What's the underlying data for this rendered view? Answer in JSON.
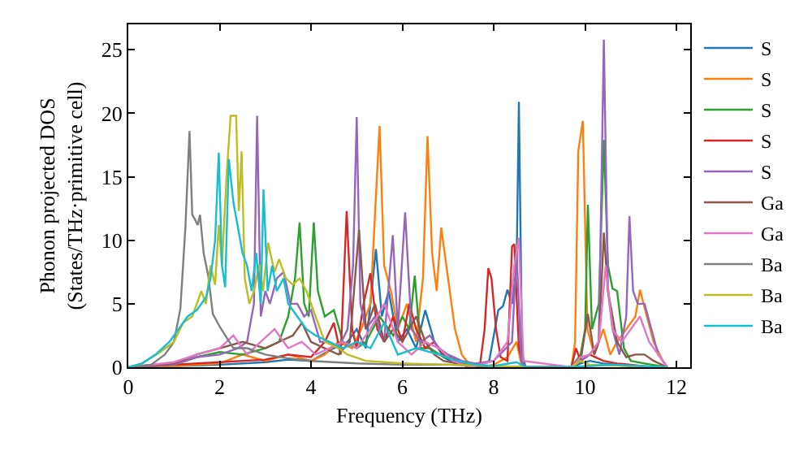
{
  "chart_data": {
    "type": "line",
    "xlabel": "Frequency (THz)",
    "ylabel": "Phonon projected DOS\n(States/THz·primitive cell)",
    "xlim": [
      0,
      12.3
    ],
    "xticks": [
      0,
      2,
      4,
      6,
      8,
      10,
      12
    ],
    "ylim": [
      0,
      27
    ],
    "yticks": [
      0,
      5,
      10,
      15,
      20,
      25
    ],
    "grid": false,
    "legend": "top right",
    "marker": "none",
    "line_style": "solid",
    "series": [
      {
        "name": "S",
        "color": "#1f77b4",
        "x": [
          0,
          1,
          2,
          3,
          3.5,
          4,
          4.5,
          4.8,
          5.0,
          5.2,
          5.42,
          5.55,
          5.7,
          5.9,
          6.1,
          6.3,
          6.5,
          6.7,
          6.9,
          7.1,
          7.3,
          7.5,
          7.7,
          7.9,
          8.0,
          8.1,
          8.2,
          8.3,
          8.4,
          8.5,
          8.55,
          8.62,
          8.7,
          9.7,
          9.9,
          10.1,
          10.4,
          10.7,
          11,
          11.5,
          11.8
        ],
        "values": [
          0,
          0.1,
          0.2,
          0.4,
          0.6,
          0.5,
          1.5,
          2,
          3,
          1.5,
          9.3,
          4,
          6,
          2,
          3,
          1.5,
          4.5,
          2,
          0.8,
          0.4,
          0.2,
          0,
          0.1,
          0.5,
          2.5,
          4.5,
          4.8,
          6.1,
          5,
          8,
          20.9,
          1,
          0,
          0,
          0.3,
          0.5,
          0.3,
          0.2,
          0.1,
          0,
          0
        ]
      },
      {
        "name": "S",
        "color": "#ff7f0e",
        "x": [
          0,
          1,
          2,
          2.5,
          3,
          3.5,
          4,
          4.3,
          4.6,
          4.9,
          5.1,
          5.3,
          5.5,
          5.6,
          5.75,
          5.9,
          6.1,
          6.3,
          6.45,
          6.55,
          6.65,
          6.75,
          6.85,
          7.0,
          7.15,
          7.3,
          7.45,
          7.7,
          8.0,
          8.3,
          8.5,
          8.6,
          8.7,
          9.7,
          9.78,
          9.85,
          9.95,
          10.05,
          10.2,
          10.4,
          10.55,
          10.7,
          10.9,
          11.1,
          11.2,
          11.35,
          11.5,
          11.7,
          11.8
        ],
        "values": [
          0,
          0.1,
          0.3,
          1,
          0.5,
          1,
          0.5,
          1,
          2,
          1.5,
          3,
          5,
          19,
          8,
          6,
          3,
          5,
          2,
          7,
          18.2,
          9,
          6,
          11,
          7,
          3,
          1,
          0.3,
          0,
          0.2,
          0.8,
          2,
          0.3,
          0,
          0,
          2,
          17,
          19.4,
          3,
          1,
          3,
          1,
          2,
          3,
          4,
          6.1,
          4,
          2,
          0.5,
          0
        ]
      },
      {
        "name": "S",
        "color": "#2ca02c",
        "x": [
          0,
          1,
          1.5,
          2,
          2.5,
          3,
          3.3,
          3.5,
          3.65,
          3.75,
          3.85,
          3.95,
          4.06,
          4.15,
          4.3,
          4.5,
          4.7,
          5.0,
          5.2,
          5.5,
          5.8,
          6.0,
          6.15,
          6.27,
          6.4,
          6.6,
          6.9,
          7.2,
          7.5,
          8,
          8.7,
          9.7,
          9.9,
          10.0,
          10.06,
          10.15,
          10.3,
          10.41,
          10.5,
          10.6,
          10.7,
          10.85,
          11,
          11.3,
          11.8
        ],
        "values": [
          0,
          0.2,
          0.8,
          1.2,
          1.0,
          1.5,
          2,
          4,
          7,
          11.4,
          5,
          4,
          11.4,
          6,
          4,
          4.5,
          2,
          1.5,
          2,
          4,
          2.5,
          4,
          3,
          7.2,
          1.5,
          1.5,
          0.8,
          0.5,
          0.1,
          0,
          0,
          0,
          1,
          3,
          12.8,
          3,
          5,
          17.9,
          8,
          6.2,
          6,
          1.5,
          0.5,
          0.3,
          0
        ]
      },
      {
        "name": "S",
        "color": "#d62728",
        "x": [
          0,
          1,
          2,
          3,
          3.5,
          4,
          4.3,
          4.5,
          4.65,
          4.78,
          4.9,
          5.0,
          5.15,
          5.3,
          5.45,
          5.6,
          5.8,
          6.0,
          6.15,
          6.3,
          6.5,
          6.7,
          6.9,
          7.1,
          7.3,
          7.5,
          7.7,
          7.8,
          7.88,
          7.95,
          8.05,
          8.15,
          8.3,
          8.4,
          8.45,
          8.55,
          8.65,
          9.7,
          9.8,
          9.9,
          10.1,
          10.4,
          10.7,
          11,
          11.5,
          11.8
        ],
        "values": [
          0,
          0.2,
          0.4,
          0.6,
          1,
          0.8,
          2,
          3.5,
          1,
          12.3,
          3,
          1.5,
          5,
          7.4,
          3,
          2,
          4,
          2,
          5,
          3,
          1.5,
          2,
          1,
          0.8,
          0.3,
          0,
          0.2,
          3,
          7.8,
          7,
          3,
          0.8,
          0.5,
          9.5,
          9.7,
          1.5,
          0,
          0,
          1.5,
          0.5,
          1,
          0.5,
          0.3,
          0.2,
          0,
          0
        ]
      },
      {
        "name": "S",
        "color": "#9467bd",
        "x": [
          0,
          1,
          1.5,
          2,
          2.4,
          2.6,
          2.75,
          2.82,
          2.9,
          3.0,
          3.1,
          3.25,
          3.4,
          3.55,
          3.7,
          3.85,
          4.0,
          4.2,
          4.4,
          4.6,
          4.8,
          4.92,
          5.0,
          5.08,
          5.2,
          5.4,
          5.6,
          5.79,
          5.9,
          6.06,
          6.2,
          6.4,
          6.6,
          6.8,
          7.0,
          7.3,
          7.6,
          8.0,
          8.4,
          8.5,
          8.6,
          8.7,
          9.7,
          9.9,
          10.1,
          10.3,
          10.41,
          10.5,
          10.6,
          10.75,
          10.9,
          10.97,
          11.05,
          11.15,
          11.3,
          11.45,
          11.6,
          11.8
        ],
        "values": [
          0,
          0.2,
          0.8,
          1,
          1.5,
          2,
          5,
          19.8,
          4,
          6,
          5,
          7,
          7.5,
          5,
          5,
          4,
          4.5,
          2,
          2,
          1.5,
          3,
          8,
          19.7,
          5,
          3,
          4,
          2,
          10.4,
          3,
          12.2,
          3,
          2,
          2.5,
          1.5,
          1,
          0.5,
          0.3,
          0.5,
          2,
          9,
          0.5,
          0,
          0,
          0.5,
          1,
          2,
          25.8,
          6,
          3,
          1,
          4,
          11.9,
          6,
          5,
          5,
          3,
          1,
          0
        ]
      },
      {
        "name": "Ga",
        "color": "#8c564b",
        "x": [
          0,
          1,
          1.5,
          2,
          2.5,
          3,
          3.3,
          3.6,
          3.8,
          4.0,
          4.3,
          4.6,
          4.85,
          5.05,
          5.2,
          5.4,
          5.6,
          5.8,
          6.0,
          6.3,
          6.5,
          6.7,
          6.9,
          7.2,
          7.5,
          8,
          8.7,
          9.7,
          9.9,
          10.06,
          10.2,
          10.3,
          10.41,
          10.5,
          10.6,
          10.7,
          10.9,
          11.1,
          11.3,
          11.5,
          11.8
        ],
        "values": [
          0,
          0.3,
          1,
          1.5,
          2,
          1.5,
          2,
          2.5,
          3.5,
          2,
          1.5,
          1,
          2,
          10.8,
          3,
          5,
          2,
          3,
          2,
          4,
          2,
          1,
          0.5,
          0.3,
          0,
          0,
          0,
          0,
          0.5,
          4.2,
          1,
          2,
          10.6,
          6,
          4,
          2,
          0.8,
          1,
          1,
          0.5,
          0
        ]
      },
      {
        "name": "Ga",
        "color": "#e377c2",
        "x": [
          0,
          1,
          1.5,
          2,
          2.3,
          2.6,
          2.9,
          3.2,
          3.5,
          3.8,
          4.1,
          4.4,
          4.7,
          5.0,
          5.3,
          5.6,
          5.9,
          6.2,
          6.5,
          6.8,
          7.1,
          7.5,
          8.0,
          8.3,
          8.45,
          8.55,
          8.65,
          9.7,
          9.9,
          10.1,
          10.3,
          10.45,
          10.6,
          10.8,
          11.0,
          11.2,
          11.4,
          11.6,
          11.8
        ],
        "values": [
          0,
          0.4,
          1,
          1.5,
          2.5,
          1,
          2,
          3,
          1.5,
          2,
          1,
          1.5,
          2,
          1.5,
          3,
          5,
          2,
          1,
          2,
          1.5,
          0.5,
          0,
          0.5,
          2,
          8,
          10.2,
          0.5,
          0,
          0.8,
          1,
          2,
          8,
          3,
          2,
          3,
          4,
          2,
          1,
          0
        ]
      },
      {
        "name": "Ba",
        "color": "#7f7f7f",
        "x": [
          0,
          0.5,
          0.8,
          1.0,
          1.14,
          1.25,
          1.34,
          1.4,
          1.45,
          1.52,
          1.57,
          1.65,
          1.75,
          1.85,
          2.0,
          2.3,
          2.6,
          3.0,
          3.5,
          4,
          5,
          6,
          7,
          8,
          8.7,
          9.7,
          10.4,
          11,
          11.8
        ],
        "values": [
          0,
          0.2,
          1,
          2,
          4.6,
          11,
          18.6,
          12,
          11.7,
          11.2,
          12,
          9,
          7.2,
          4.2,
          3.2,
          1.5,
          1.5,
          1,
          0.7,
          0.5,
          0.3,
          0.2,
          0.2,
          0.1,
          0,
          0,
          0.2,
          0.1,
          0
        ]
      },
      {
        "name": "Ba",
        "color": "#bcbd22",
        "x": [
          0,
          0.3,
          0.7,
          1.0,
          1.2,
          1.4,
          1.5,
          1.6,
          1.7,
          1.8,
          1.9,
          1.98,
          2.05,
          2.15,
          2.24,
          2.36,
          2.42,
          2.48,
          2.55,
          2.65,
          2.75,
          2.87,
          2.95,
          3.06,
          3.2,
          3.3,
          3.45,
          3.6,
          3.75,
          3.9,
          4.1,
          4.3,
          4.6,
          4.8,
          5.2,
          6,
          7,
          8,
          8.7,
          9.7,
          9.9,
          10.1,
          11,
          11.8
        ],
        "values": [
          0,
          0.3,
          1.2,
          2,
          3.5,
          4,
          5,
          6,
          5,
          8,
          6.5,
          11.2,
          8,
          15,
          19.8,
          19.8,
          12.3,
          17,
          7,
          5,
          6,
          8.1,
          6,
          9.8,
          7.5,
          8.5,
          7,
          6.5,
          7,
          6,
          4,
          2,
          1.5,
          1,
          0.5,
          0.3,
          0.2,
          0.1,
          0,
          0,
          0.5,
          0.2,
          0.1,
          0
        ]
      },
      {
        "name": "Ba",
        "color": "#17becf",
        "x": [
          0,
          0.3,
          0.6,
          0.9,
          1.1,
          1.3,
          1.5,
          1.7,
          1.8,
          1.9,
          1.98,
          2.05,
          2.12,
          2.2,
          2.3,
          2.4,
          2.5,
          2.6,
          2.7,
          2.8,
          2.9,
          2.96,
          3.05,
          3.15,
          3.25,
          3.4,
          3.5,
          3.7,
          3.9,
          4.1,
          4.4,
          4.7,
          5.0,
          5.3,
          5.6,
          5.9,
          6.3,
          6.8,
          7.2,
          7.6,
          8.0,
          8.5,
          8.7,
          9.7,
          10.6,
          11.8
        ],
        "values": [
          0,
          0.3,
          1,
          2,
          3,
          4,
          4.5,
          5.5,
          7,
          10,
          16.9,
          8,
          6.3,
          16.4,
          13,
          11,
          9,
          8,
          6,
          9,
          5,
          14,
          6,
          8,
          6,
          7,
          5,
          4,
          3,
          2.5,
          2,
          1.5,
          2,
          1.5,
          3.5,
          1,
          1.5,
          1,
          0.5,
          0.2,
          0.1,
          0.4,
          0,
          0,
          0.2,
          0
        ]
      }
    ]
  }
}
